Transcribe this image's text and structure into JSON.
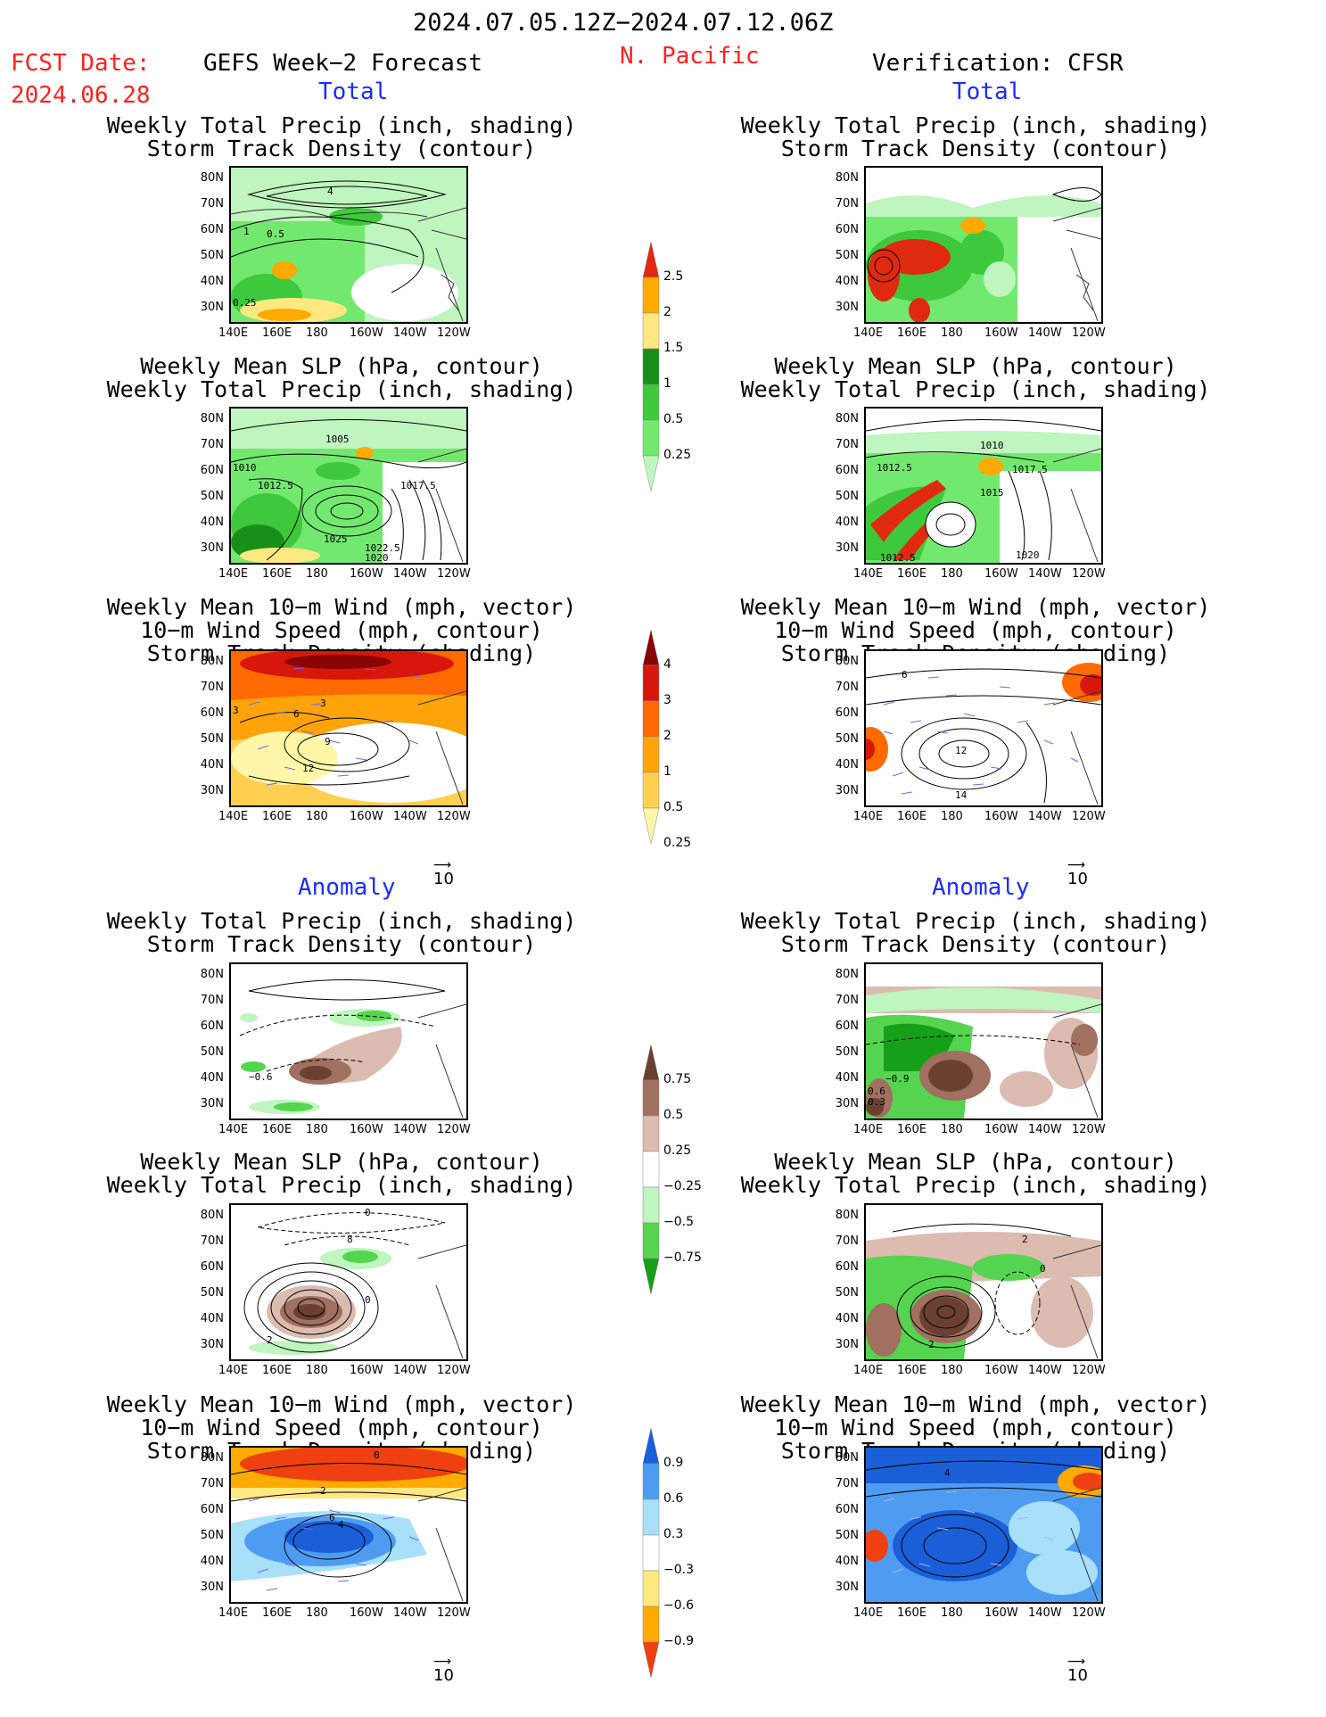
{
  "header": {
    "period": "2024.07.05.12Z−2024.07.12.06Z",
    "region": "N. Pacific",
    "fcst_label": "FCST Date:",
    "fcst_date": "2024.06.28",
    "left_title": "GEFS Week−2 Forecast",
    "right_title": "Verification: CFSR"
  },
  "sections": {
    "total": "Total",
    "anomaly": "Anomaly"
  },
  "titles": {
    "precip_track": [
      "Weekly Total Precip (inch, shading)",
      "Storm Track Density (contour)"
    ],
    "slp_precip": [
      "Weekly Mean SLP (hPa, contour)",
      "Weekly Total Precip (inch, shading)"
    ],
    "wind_track": [
      "Weekly Mean 10−m Wind (mph, vector)",
      "10−m Wind Speed (mph, contour)",
      "Storm Track Density (shading)"
    ]
  },
  "axes": {
    "lat": [
      "80N",
      "70N",
      "60N",
      "50N",
      "40N",
      "30N"
    ],
    "lon": [
      "140E",
      "160E",
      "180",
      "160W",
      "140W",
      "120W"
    ]
  },
  "vector_ref": "10",
  "colorbars": {
    "precip_total": [
      "2.5",
      "2",
      "1.5",
      "1",
      "0.5",
      "0.25"
    ],
    "track_total": [
      "4",
      "3",
      "2",
      "1",
      "0.5",
      "0.25"
    ],
    "precip_anom": [
      "0.75",
      "0.5",
      "0.25",
      "−0.25",
      "−0.5",
      "−0.75"
    ],
    "track_anom": [
      "0.9",
      "0.6",
      "0.3",
      "−0.3",
      "−0.6",
      "−0.9"
    ]
  },
  "contour_labels": {
    "p1_left": [
      "4",
      "1",
      "0.5",
      "0.25"
    ],
    "p2_left": [
      "1005",
      "1010",
      "1012.5",
      "1017.5",
      "1025",
      "1022.5",
      "1020"
    ],
    "p2_right": [
      "1010",
      "1012.5",
      "1017.5",
      "1015",
      "1020",
      "1012.5"
    ],
    "p3_left": [
      "3",
      "3",
      "6",
      "9",
      "12"
    ],
    "p3_right": [
      "6",
      "12",
      "14"
    ],
    "p4_left": [
      "−0.6"
    ],
    "p4_right": [
      "−0.9",
      "0.6",
      "0.3"
    ],
    "p5_left": [
      "0",
      "8",
      "0",
      "2"
    ],
    "p5_right": [
      "2",
      "0",
      "2"
    ],
    "p6_left": [
      "0",
      "2",
      "6",
      "4"
    ],
    "p6_right": [
      "4"
    ]
  },
  "colors": {
    "red_text": "#ff2020",
    "blue_text": "#1a2cff",
    "precip": [
      "#bff5be",
      "#73e86f",
      "#3dc93b",
      "#188f18",
      "#ffe880",
      "#ffaa00",
      "#e02a10"
    ],
    "track": [
      "#fff7a8",
      "#ffd050",
      "#ffa30a",
      "#ff6a00",
      "#d8170c",
      "#8a0404"
    ],
    "precip_anom": [
      "#6b4030",
      "#a07060",
      "#dcbbb0",
      "#ffffff",
      "#bff5be",
      "#55d450",
      "#16a01a"
    ],
    "track_anom": [
      "#1a5ed8",
      "#4e9cf2",
      "#a8e0fa",
      "#ffffff",
      "#ffe880",
      "#ffaa00",
      "#ee4010"
    ]
  }
}
